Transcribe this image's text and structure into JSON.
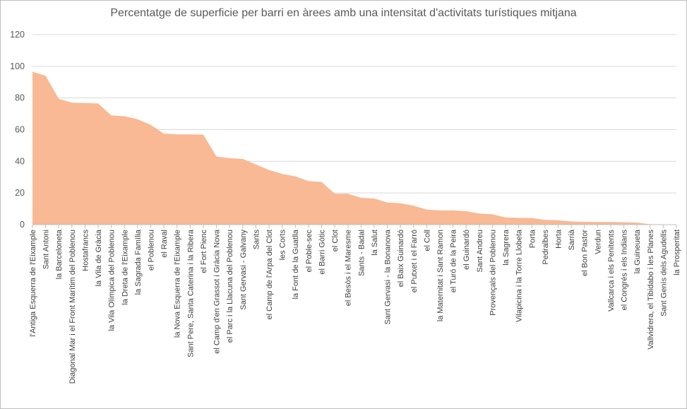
{
  "chart_data": {
    "type": "area",
    "title": "Percentatge de superficie per barri en àrees amb una intensitat  d'activitats turístiques mitjana",
    "xlabel": "",
    "ylabel": "",
    "ylim": [
      0,
      120
    ],
    "yticks": [
      0,
      20,
      40,
      60,
      80,
      100,
      120
    ],
    "grid": true,
    "color": "#f8b994",
    "categories": [
      "l'Antiga Esquerra de l'Eixample",
      "Sant Antoni",
      "la Barceloneta",
      "Diagonal Mar i el Front Marítim del Poblenou",
      "Hostafrancs",
      "la Vila de Gràcia",
      "la Vila Olímpica del Poblenou",
      "la Dreta de l'Eixample",
      "la Sagrada Família",
      "el Poblenou",
      "el Raval",
      "la Nova Esquerra de l'Eixample",
      "Sant Pere, Santa Caterina i la Ribera",
      "el Fort Pienc",
      "el Camp d'en Grassot i Gràcia Nova",
      "el Parc i la Llacuna del Poblenou",
      "Sant Gervasi - Galvany",
      "Sants",
      "el Camp de l'Arpa del Clot",
      "les Corts",
      "la Font de la Guatlla",
      "el Poble-sec",
      "el Barri Gòtic",
      "el Clot",
      "el Besòs i el Maresme",
      "Sants - Badal",
      "la Salut",
      "Sant Gervasi - la Bonanova",
      "el Baix Guinardó",
      "el Putxet i el Farró",
      "el Coll",
      "la Maternitat i Sant Ramon",
      "el Turó de la Peira",
      "el Guinardó",
      "Sant Andreu",
      "Provençals del Poblenou",
      "la Sagrera",
      "Vilapicina i la Torre Llobeta",
      "Porta",
      "Pedralbes",
      "Horta",
      "Sarrià",
      "el Bon Pastor",
      "Verdun",
      "Vallcarca i els Penitents",
      "el Congrés i els Indians",
      "la Guineueta",
      "Vallvidrera, el Tibidabo i les Planes",
      "Sant Genís dels Agudells",
      "la Prosperitat"
    ],
    "values": [
      96.5,
      94,
      79.5,
      77,
      76.8,
      76.5,
      69,
      68.5,
      66.5,
      63,
      57.5,
      57,
      57,
      56.8,
      43,
      42,
      41.5,
      38,
      34.5,
      32,
      30.5,
      27.5,
      27,
      19.5,
      19.5,
      17,
      16.5,
      14,
      13.5,
      12,
      9.5,
      9,
      9,
      8.5,
      7,
      6.5,
      4.5,
      4.3,
      4.2,
      3,
      2.8,
      2,
      1.8,
      1.7,
      1.7,
      1.5,
      1.3,
      0.3,
      0.2,
      0.1
    ]
  }
}
